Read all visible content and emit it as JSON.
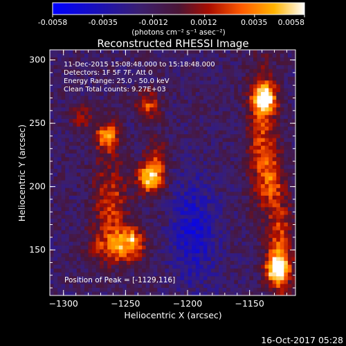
{
  "colorbar": {
    "ticks": [
      "-0.0058",
      "-0.0035",
      "-0.0012",
      "0.0012",
      "0.0035",
      "0.0058"
    ],
    "tick_values": [
      -0.0058,
      -0.0035,
      -0.0012,
      0.0012,
      0.0035,
      0.0058
    ],
    "units": "(photons cm⁻² s⁻¹ asec⁻²)"
  },
  "chart_data": {
    "type": "heatmap",
    "title": "Reconstructed RHESSI Image",
    "xlabel": "Heliocentric X (arcsec)",
    "ylabel": "Heliocentric Y (arcsec)",
    "xlim": [
      -1311,
      -1113
    ],
    "ylim": [
      114,
      308
    ],
    "x_ticks": [
      -1300,
      -1250,
      -1200,
      -1150
    ],
    "y_ticks": [
      150,
      200,
      250,
      300
    ],
    "x_tick_labels": [
      "−1300",
      "−1250",
      "−1200",
      "−1150"
    ],
    "y_tick_labels": [
      "150",
      "200",
      "250",
      "300"
    ],
    "value_range": [
      -0.0058,
      0.0058
    ],
    "colormap": "rhessi-blue-purple-red-yellow-white",
    "bright_sources": [
      {
        "x": -1248,
        "y": 158,
        "peak": 0.0045
      },
      {
        "x": -1265,
        "y": 240,
        "peak": 0.004
      },
      {
        "x": -1232,
        "y": 207,
        "peak": 0.004
      },
      {
        "x": -1138,
        "y": 270,
        "peak": 0.005
      },
      {
        "x": -1128,
        "y": 135,
        "peak": 0.0052
      },
      {
        "x": -1232,
        "y": 265,
        "peak": 0.0025
      }
    ],
    "info": {
      "time_range": "11-Dec-2015 15:08:48.000 to 15:18:48.000",
      "detectors": "Detectors: 1F 5F 7F, Att 0",
      "energy": "Energy Range: 25.0 - 50.0 keV",
      "algorithm": "Clean     Total counts: 9.27E+03"
    },
    "peak_label": "Position of Peak = [-1129,116]",
    "peak_position": [
      -1129,
      116
    ]
  },
  "footer": {
    "timestamp": "16-Oct-2017 05:28"
  }
}
